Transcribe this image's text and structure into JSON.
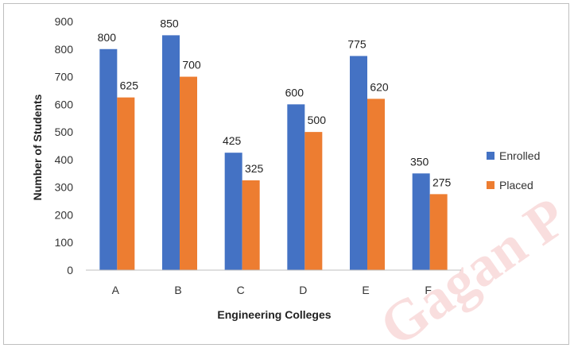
{
  "chart_data": {
    "type": "bar",
    "categories": [
      "A",
      "B",
      "C",
      "D",
      "E",
      "F"
    ],
    "series": [
      {
        "name": "Enrolled",
        "values": [
          800,
          850,
          425,
          600,
          775,
          350
        ],
        "color": "#4472c4"
      },
      {
        "name": "Placed",
        "values": [
          625,
          700,
          325,
          500,
          620,
          275
        ],
        "color": "#ed7d31"
      }
    ],
    "xlabel": "Engineering Colleges",
    "ylabel": "Number of Students",
    "ylim": [
      0,
      900
    ],
    "yticks": [
      "0",
      "100",
      "200",
      "300",
      "400",
      "500",
      "600",
      "700",
      "800",
      "900"
    ],
    "grid": false,
    "legend_position": "right",
    "data_labels": true
  },
  "watermark": {
    "text": "Gagan P"
  }
}
